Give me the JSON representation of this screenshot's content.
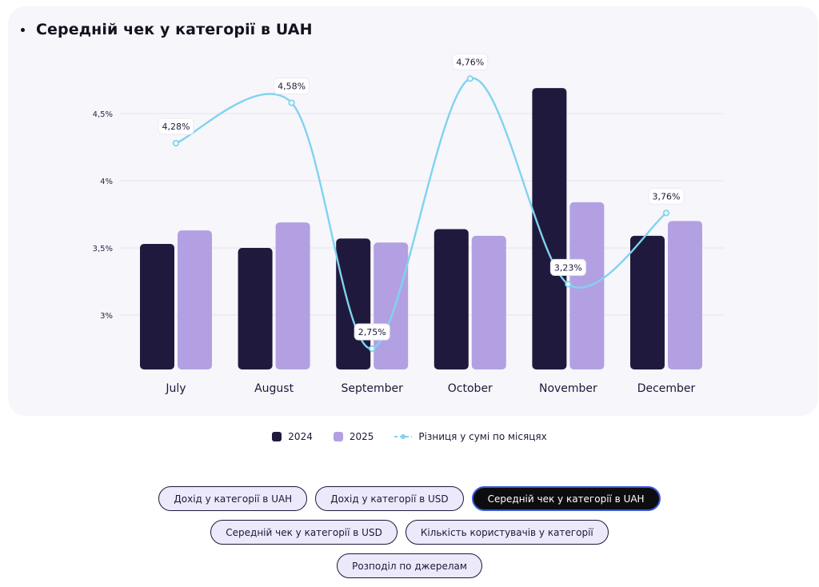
{
  "title": "Середній чек у категорії в UAH",
  "colors": {
    "series_2024": "#1f1a3d",
    "series_2025": "#b3a0e2",
    "diff_line": "#7fd3ef",
    "card_bg": "#f7f6fb",
    "active_button_bg": "#0d0d10",
    "inactive_button_bg": "#ece9fb"
  },
  "chart_data": {
    "type": "bar",
    "categories": [
      "July",
      "August",
      "September",
      "October",
      "November",
      "December"
    ],
    "y_ticks": [
      "4,5%",
      "4%",
      "3,5%",
      "3%"
    ],
    "y_tick_values": [
      4.5,
      4.0,
      3.5,
      3.0
    ],
    "ylim": [
      2.6,
      4.8
    ],
    "series": [
      {
        "name": "2024",
        "values": [
          3.53,
          3.5,
          3.57,
          3.64,
          4.69,
          3.59
        ]
      },
      {
        "name": "2025",
        "values": [
          3.63,
          3.69,
          3.54,
          3.59,
          3.84,
          3.7
        ]
      }
    ],
    "line_series": {
      "name": "Різниця у сумі по місяцях",
      "values": [
        4.28,
        4.58,
        2.75,
        4.76,
        3.23,
        3.76
      ],
      "labels": [
        "4,28%",
        "4,58%",
        "2,75%",
        "4,76%",
        "3,23%",
        "3,76%"
      ]
    },
    "grid": true,
    "legend_position": "bottom-center"
  },
  "legend": {
    "item_2024": "2024",
    "item_2025": "2025",
    "item_diff": "Різниця у сумі по місяцях"
  },
  "buttons": {
    "income_uah": "Дохід у категорії в UAH",
    "income_usd": "Дохід у категорії в USD",
    "avg_check_uah": "Середній чек у категорії в UAH",
    "avg_check_usd": "Середній чек у категорії в USD",
    "users_count": "Кількість користувачів у категорії",
    "sources": "Розподіл по джерелам"
  }
}
